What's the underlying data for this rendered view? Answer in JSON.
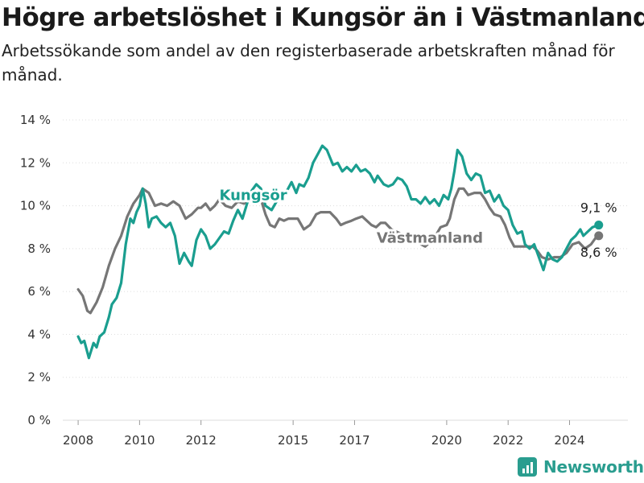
{
  "title": "Högre arbetslöshet i Kungsör än i Västmanland",
  "subtitle": "Arbetssökande som andel av den registerbaserade arbetskraften månad för månad.",
  "brand": "Newsworthy",
  "colors": {
    "kungsor": "#1a9e8f",
    "vastmanland": "#767676",
    "grid": "#dddddd",
    "text": "#1a1a1a",
    "brand": "#2a9d8f"
  },
  "chart_data": {
    "type": "line",
    "title": "Högre arbetslöshet i Kungsör än i Västmanland",
    "subtitle": "Arbetssökande som andel av den registerbaserade arbetskraften månad för månad.",
    "xlabel": "",
    "ylabel": "",
    "xlim": [
      2007.5,
      2025.9
    ],
    "ylim": [
      0,
      14
    ],
    "grid": true,
    "yticks": [
      0,
      2,
      4,
      6,
      8,
      10,
      12,
      14
    ],
    "ytick_labels": [
      "0 %",
      "2 %",
      "4 %",
      "6 %",
      "8 %",
      "10 %",
      "12 %",
      "14 %"
    ],
    "xticks": [
      2008,
      2010,
      2012,
      2015,
      2017,
      2020,
      2022,
      2024
    ],
    "xtick_labels": [
      "2008",
      "2010",
      "2012",
      "2015",
      "2017",
      "2020",
      "2022",
      "2024"
    ],
    "series": [
      {
        "name": "Västmanland",
        "end_label": "8,6 %",
        "points": [
          [
            2008.0,
            6.1
          ],
          [
            2008.15,
            5.8
          ],
          [
            2008.3,
            5.1
          ],
          [
            2008.4,
            5.0
          ],
          [
            2008.6,
            5.5
          ],
          [
            2008.8,
            6.2
          ],
          [
            2009.0,
            7.2
          ],
          [
            2009.2,
            8.0
          ],
          [
            2009.4,
            8.6
          ],
          [
            2009.6,
            9.5
          ],
          [
            2009.8,
            10.1
          ],
          [
            2010.0,
            10.5
          ],
          [
            2010.1,
            10.8
          ],
          [
            2010.3,
            10.6
          ],
          [
            2010.5,
            10.0
          ],
          [
            2010.7,
            10.1
          ],
          [
            2010.9,
            10.0
          ],
          [
            2011.1,
            10.2
          ],
          [
            2011.3,
            10.0
          ],
          [
            2011.5,
            9.4
          ],
          [
            2011.7,
            9.6
          ],
          [
            2011.9,
            9.9
          ],
          [
            2012.0,
            9.9
          ],
          [
            2012.15,
            10.1
          ],
          [
            2012.3,
            9.8
          ],
          [
            2012.45,
            10.0
          ],
          [
            2012.6,
            10.3
          ],
          [
            2012.8,
            10.0
          ],
          [
            2013.0,
            9.9
          ],
          [
            2013.2,
            10.2
          ],
          [
            2013.4,
            10.1
          ],
          [
            2013.6,
            10.3
          ],
          [
            2013.8,
            10.1
          ],
          [
            2013.95,
            10.3
          ],
          [
            2014.1,
            9.6
          ],
          [
            2014.25,
            9.1
          ],
          [
            2014.4,
            9.0
          ],
          [
            2014.55,
            9.4
          ],
          [
            2014.7,
            9.3
          ],
          [
            2014.85,
            9.4
          ],
          [
            2015.0,
            9.4
          ],
          [
            2015.15,
            9.4
          ],
          [
            2015.35,
            8.9
          ],
          [
            2015.55,
            9.1
          ],
          [
            2015.75,
            9.6
          ],
          [
            2015.9,
            9.7
          ],
          [
            2016.2,
            9.7
          ],
          [
            2016.4,
            9.4
          ],
          [
            2016.55,
            9.1
          ],
          [
            2016.7,
            9.2
          ],
          [
            2016.9,
            9.3
          ],
          [
            2017.05,
            9.4
          ],
          [
            2017.25,
            9.5
          ],
          [
            2017.4,
            9.3
          ],
          [
            2017.55,
            9.1
          ],
          [
            2017.7,
            9.0
          ],
          [
            2017.85,
            9.2
          ],
          [
            2018.0,
            9.2
          ],
          [
            2018.2,
            8.9
          ],
          [
            2018.5,
            8.7
          ],
          [
            2018.9,
            8.4
          ],
          [
            2019.3,
            8.1
          ],
          [
            2019.6,
            8.5
          ],
          [
            2019.8,
            9.0
          ],
          [
            2020.0,
            9.1
          ],
          [
            2020.1,
            9.4
          ],
          [
            2020.25,
            10.3
          ],
          [
            2020.4,
            10.8
          ],
          [
            2020.55,
            10.8
          ],
          [
            2020.7,
            10.5
          ],
          [
            2020.9,
            10.6
          ],
          [
            2021.1,
            10.6
          ],
          [
            2021.25,
            10.3
          ],
          [
            2021.4,
            9.9
          ],
          [
            2021.55,
            9.6
          ],
          [
            2021.75,
            9.5
          ],
          [
            2021.9,
            9.1
          ],
          [
            2022.05,
            8.5
          ],
          [
            2022.2,
            8.1
          ],
          [
            2022.4,
            8.1
          ],
          [
            2022.6,
            8.1
          ],
          [
            2022.8,
            8.1
          ],
          [
            2022.95,
            7.9
          ],
          [
            2023.1,
            7.6
          ],
          [
            2023.3,
            7.5
          ],
          [
            2023.5,
            7.6
          ],
          [
            2023.7,
            7.6
          ],
          [
            2023.9,
            7.8
          ],
          [
            2024.1,
            8.2
          ],
          [
            2024.3,
            8.3
          ],
          [
            2024.5,
            8.0
          ],
          [
            2024.7,
            8.2
          ],
          [
            2024.85,
            8.5
          ],
          [
            2024.95,
            8.6
          ]
        ]
      },
      {
        "name": "Kungsör",
        "end_label": "9,1 %",
        "points": [
          [
            2008.0,
            3.9
          ],
          [
            2008.1,
            3.6
          ],
          [
            2008.2,
            3.7
          ],
          [
            2008.35,
            2.9
          ],
          [
            2008.5,
            3.6
          ],
          [
            2008.6,
            3.4
          ],
          [
            2008.7,
            3.9
          ],
          [
            2008.85,
            4.1
          ],
          [
            2009.0,
            4.8
          ],
          [
            2009.1,
            5.4
          ],
          [
            2009.25,
            5.7
          ],
          [
            2009.4,
            6.4
          ],
          [
            2009.55,
            8.2
          ],
          [
            2009.7,
            9.4
          ],
          [
            2009.8,
            9.2
          ],
          [
            2009.9,
            9.7
          ],
          [
            2010.0,
            10.0
          ],
          [
            2010.1,
            10.8
          ],
          [
            2010.2,
            10.1
          ],
          [
            2010.3,
            9.0
          ],
          [
            2010.4,
            9.4
          ],
          [
            2010.55,
            9.5
          ],
          [
            2010.7,
            9.2
          ],
          [
            2010.85,
            9.0
          ],
          [
            2011.0,
            9.2
          ],
          [
            2011.15,
            8.6
          ],
          [
            2011.3,
            7.3
          ],
          [
            2011.45,
            7.8
          ],
          [
            2011.6,
            7.4
          ],
          [
            2011.7,
            7.2
          ],
          [
            2011.85,
            8.4
          ],
          [
            2012.0,
            8.9
          ],
          [
            2012.15,
            8.6
          ],
          [
            2012.3,
            8.0
          ],
          [
            2012.45,
            8.2
          ],
          [
            2012.6,
            8.5
          ],
          [
            2012.75,
            8.8
          ],
          [
            2012.9,
            8.7
          ],
          [
            2013.05,
            9.3
          ],
          [
            2013.2,
            9.8
          ],
          [
            2013.35,
            9.4
          ],
          [
            2013.5,
            10.1
          ],
          [
            2013.65,
            10.7
          ],
          [
            2013.8,
            11.0
          ],
          [
            2013.95,
            10.8
          ],
          [
            2014.1,
            10.0
          ],
          [
            2014.3,
            9.8
          ],
          [
            2014.5,
            10.3
          ],
          [
            2014.65,
            10.4
          ],
          [
            2014.8,
            10.7
          ],
          [
            2014.95,
            11.1
          ],
          [
            2015.1,
            10.6
          ],
          [
            2015.2,
            11.0
          ],
          [
            2015.35,
            10.9
          ],
          [
            2015.5,
            11.3
          ],
          [
            2015.65,
            12.0
          ],
          [
            2015.8,
            12.4
          ],
          [
            2015.95,
            12.8
          ],
          [
            2016.1,
            12.6
          ],
          [
            2016.3,
            11.9
          ],
          [
            2016.45,
            12.0
          ],
          [
            2016.6,
            11.6
          ],
          [
            2016.75,
            11.8
          ],
          [
            2016.9,
            11.6
          ],
          [
            2017.05,
            11.9
          ],
          [
            2017.2,
            11.6
          ],
          [
            2017.35,
            11.7
          ],
          [
            2017.5,
            11.5
          ],
          [
            2017.65,
            11.1
          ],
          [
            2017.75,
            11.4
          ],
          [
            2017.95,
            11.0
          ],
          [
            2018.1,
            10.9
          ],
          [
            2018.25,
            11.0
          ],
          [
            2018.4,
            11.3
          ],
          [
            2018.55,
            11.2
          ],
          [
            2018.7,
            10.9
          ],
          [
            2018.85,
            10.3
          ],
          [
            2019.0,
            10.3
          ],
          [
            2019.15,
            10.1
          ],
          [
            2019.3,
            10.4
          ],
          [
            2019.45,
            10.1
          ],
          [
            2019.6,
            10.3
          ],
          [
            2019.75,
            10.0
          ],
          [
            2019.9,
            10.5
          ],
          [
            2020.05,
            10.3
          ],
          [
            2020.15,
            10.8
          ],
          [
            2020.25,
            11.6
          ],
          [
            2020.35,
            12.6
          ],
          [
            2020.5,
            12.3
          ],
          [
            2020.65,
            11.5
          ],
          [
            2020.8,
            11.2
          ],
          [
            2020.95,
            11.5
          ],
          [
            2021.1,
            11.4
          ],
          [
            2021.25,
            10.6
          ],
          [
            2021.4,
            10.7
          ],
          [
            2021.55,
            10.2
          ],
          [
            2021.7,
            10.5
          ],
          [
            2021.85,
            10.0
          ],
          [
            2022.0,
            9.8
          ],
          [
            2022.15,
            9.1
          ],
          [
            2022.3,
            8.7
          ],
          [
            2022.45,
            8.8
          ],
          [
            2022.55,
            8.2
          ],
          [
            2022.7,
            8.0
          ],
          [
            2022.85,
            8.2
          ],
          [
            2023.0,
            7.6
          ],
          [
            2023.15,
            7.0
          ],
          [
            2023.3,
            7.8
          ],
          [
            2023.45,
            7.5
          ],
          [
            2023.6,
            7.4
          ],
          [
            2023.75,
            7.6
          ],
          [
            2023.9,
            8.0
          ],
          [
            2024.05,
            8.4
          ],
          [
            2024.2,
            8.6
          ],
          [
            2024.35,
            8.9
          ],
          [
            2024.45,
            8.6
          ],
          [
            2024.6,
            8.8
          ],
          [
            2024.75,
            9.0
          ],
          [
            2024.95,
            9.1
          ]
        ]
      }
    ],
    "annotations": [
      {
        "series": "Kungsör",
        "text": "Kungsör",
        "x": 2013.7,
        "y": 10.5
      },
      {
        "series": "Västmanland",
        "text": "Västmanland",
        "x": 2019.45,
        "y": 8.5
      }
    ]
  }
}
